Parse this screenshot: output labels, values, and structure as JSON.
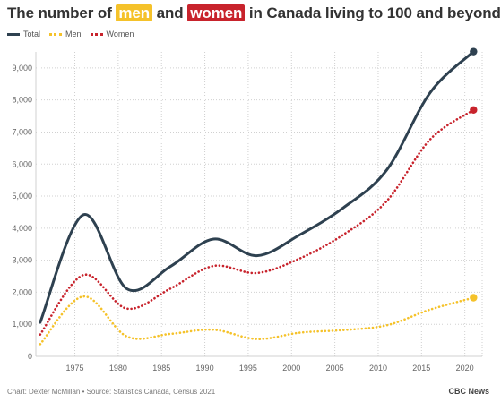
{
  "title": {
    "part1": "The number of ",
    "men": "men",
    "part2": " and ",
    "women": "women",
    "part3": " in Canada living to 100 and beyond"
  },
  "legend": {
    "total": "Total",
    "men": "Men",
    "women": "Women"
  },
  "footer": {
    "credit": "Chart: Dexter McMillan • Source: Statistics Canada, Census 2021",
    "brand": "CBC News"
  },
  "colors": {
    "total": "#2e4150",
    "men": "#f5c22a",
    "women": "#c8232c",
    "grid": "#d0d0d0"
  },
  "chart_data": {
    "type": "line",
    "title": "The number of men and women in Canada living to 100 and beyond",
    "xlabel": "",
    "ylabel": "",
    "xlim": [
      1970.5,
      2022
    ],
    "ylim": [
      0,
      9500
    ],
    "x_ticks": [
      1975,
      1980,
      1985,
      1990,
      1995,
      2000,
      2005,
      2010,
      2015,
      2020
    ],
    "y_ticks": [
      0,
      1000,
      2000,
      3000,
      4000,
      5000,
      6000,
      7000,
      8000,
      9000
    ],
    "y_tick_labels": [
      "0",
      "1,000",
      "2,000",
      "3,000",
      "4,000",
      "5,000",
      "6,000",
      "7,000",
      "8,000",
      "9,000"
    ],
    "grid": true,
    "legend_position": "top-left",
    "x": [
      1971,
      1976,
      1981,
      1986,
      1991,
      1996,
      2001,
      2006,
      2011,
      2016,
      2021
    ],
    "series": [
      {
        "name": "Total",
        "style": "solid",
        "values": [
          1060,
          4420,
          2110,
          2800,
          3660,
          3140,
          3800,
          4640,
          5820,
          8230,
          9510
        ]
      },
      {
        "name": "Men",
        "style": "dotted",
        "values": [
          380,
          1870,
          620,
          700,
          830,
          540,
          740,
          820,
          970,
          1460,
          1830
        ]
      },
      {
        "name": "Women",
        "style": "dotted",
        "values": [
          680,
          2540,
          1490,
          2110,
          2820,
          2600,
          3060,
          3800,
          4850,
          6770,
          7690
        ]
      }
    ]
  }
}
